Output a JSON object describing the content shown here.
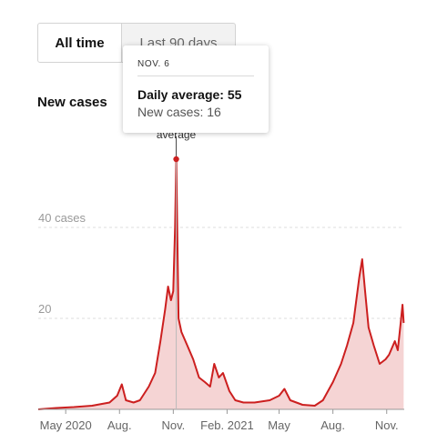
{
  "toggle": {
    "all_time": "All time",
    "last_90": "Last 90 days"
  },
  "section_title": "New cases",
  "tooltip": {
    "date": "NOV. 6",
    "avg_label": "Daily average: 55",
    "new_label": "New cases: 16"
  },
  "marker_label": "average",
  "colors": {
    "line": "#cc1f1f",
    "fill": "#f5d4d4",
    "grid": "#dddddd",
    "axis_text": "#999999"
  },
  "chart_data": {
    "type": "area",
    "title": "New cases",
    "xlabel": "",
    "ylabel": "",
    "ylim": [
      0,
      60
    ],
    "y_ticks": [
      {
        "value": 20,
        "label": "20"
      },
      {
        "value": 40,
        "label": "40 cases"
      }
    ],
    "x_ticks": [
      {
        "date": "2020-05-01",
        "label": "May 2020"
      },
      {
        "date": "2020-08-01",
        "label": "Aug."
      },
      {
        "date": "2020-11-01",
        "label": "Nov."
      },
      {
        "date": "2021-02-01",
        "label": "Feb. 2021"
      },
      {
        "date": "2021-05-01",
        "label": "May"
      },
      {
        "date": "2021-08-01",
        "label": "Aug."
      },
      {
        "date": "2021-11-01",
        "label": "Nov."
      }
    ],
    "x_range": [
      "2020-03-15",
      "2021-12-01"
    ],
    "series": [
      {
        "name": "Daily average",
        "points": [
          [
            "2020-03-15",
            0
          ],
          [
            "2020-04-15",
            0.3
          ],
          [
            "2020-05-15",
            0.5
          ],
          [
            "2020-06-15",
            0.8
          ],
          [
            "2020-07-15",
            1.5
          ],
          [
            "2020-07-28",
            3
          ],
          [
            "2020-08-05",
            5.5
          ],
          [
            "2020-08-12",
            2
          ],
          [
            "2020-08-25",
            1.5
          ],
          [
            "2020-09-05",
            2
          ],
          [
            "2020-09-20",
            5
          ],
          [
            "2020-10-01",
            8
          ],
          [
            "2020-10-10",
            15
          ],
          [
            "2020-10-18",
            22
          ],
          [
            "2020-10-23",
            27
          ],
          [
            "2020-10-28",
            24
          ],
          [
            "2020-11-01",
            26
          ],
          [
            "2020-11-04",
            40
          ],
          [
            "2020-11-06",
            55
          ],
          [
            "2020-11-08",
            38
          ],
          [
            "2020-11-10",
            20
          ],
          [
            "2020-11-15",
            17
          ],
          [
            "2020-11-25",
            14
          ],
          [
            "2020-12-05",
            11
          ],
          [
            "2020-12-15",
            7
          ],
          [
            "2020-12-25",
            6
          ],
          [
            "2021-01-03",
            5
          ],
          [
            "2021-01-10",
            10
          ],
          [
            "2021-01-18",
            7
          ],
          [
            "2021-01-25",
            8
          ],
          [
            "2021-02-05",
            4
          ],
          [
            "2021-02-15",
            2
          ],
          [
            "2021-03-01",
            1.5
          ],
          [
            "2021-03-20",
            1.5
          ],
          [
            "2021-04-15",
            2
          ],
          [
            "2021-05-01",
            3
          ],
          [
            "2021-05-10",
            4.5
          ],
          [
            "2021-05-20",
            2
          ],
          [
            "2021-06-10",
            1
          ],
          [
            "2021-07-01",
            0.8
          ],
          [
            "2021-07-15",
            2
          ],
          [
            "2021-08-01",
            6
          ],
          [
            "2021-08-15",
            10
          ],
          [
            "2021-08-25",
            14
          ],
          [
            "2021-09-05",
            19
          ],
          [
            "2021-09-15",
            29
          ],
          [
            "2021-09-20",
            33
          ],
          [
            "2021-09-25",
            26
          ],
          [
            "2021-10-01",
            18
          ],
          [
            "2021-10-10",
            14
          ],
          [
            "2021-10-20",
            10
          ],
          [
            "2021-10-30",
            11
          ],
          [
            "2021-11-05",
            12
          ],
          [
            "2021-11-15",
            15
          ],
          [
            "2021-11-20",
            13
          ],
          [
            "2021-11-25",
            19
          ],
          [
            "2021-11-28",
            23
          ],
          [
            "2021-11-30",
            19
          ]
        ]
      }
    ],
    "highlight": {
      "date": "2020-11-06",
      "daily_average": 55,
      "new_cases": 16
    }
  }
}
